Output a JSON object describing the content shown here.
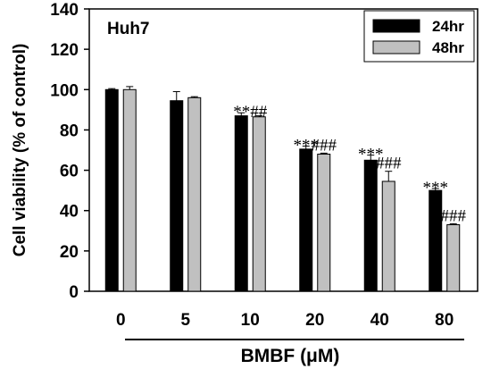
{
  "chart_data": {
    "type": "bar",
    "panel_label": "Huh7",
    "ylabel": "Cell viability (% of control)",
    "xlabel": "BMBF (μM)",
    "ylim": [
      0,
      140
    ],
    "yticks": [
      0,
      20,
      40,
      60,
      80,
      100,
      120,
      140
    ],
    "categories": [
      "0",
      "5",
      "10",
      "20",
      "40",
      "80"
    ],
    "series": [
      {
        "name": "24hr",
        "color": "#000000",
        "values": [
          100,
          94.5,
          87,
          70.5,
          65,
          50
        ],
        "errors": [
          0.5,
          4.5,
          1.5,
          1.5,
          2.5,
          1
        ]
      },
      {
        "name": "48hr",
        "color": "#c0c0c0",
        "values": [
          100,
          96,
          86.5,
          68,
          54.5,
          33
        ],
        "errors": [
          1.5,
          0.5,
          0.5,
          0.5,
          5,
          0.5
        ]
      }
    ],
    "annotations": [
      {
        "category": "10",
        "label": "**##"
      },
      {
        "category": "20",
        "series": "24hr",
        "label": "***"
      },
      {
        "category": "20",
        "series": "48hr",
        "label": "###"
      },
      {
        "category": "40",
        "series": "24hr",
        "label": "***"
      },
      {
        "category": "40",
        "series": "48hr",
        "label": "###"
      },
      {
        "category": "80",
        "series": "24hr",
        "label": "***"
      },
      {
        "category": "80",
        "series": "48hr",
        "label": "###"
      }
    ],
    "grid": false,
    "legend_position": "top-right"
  }
}
